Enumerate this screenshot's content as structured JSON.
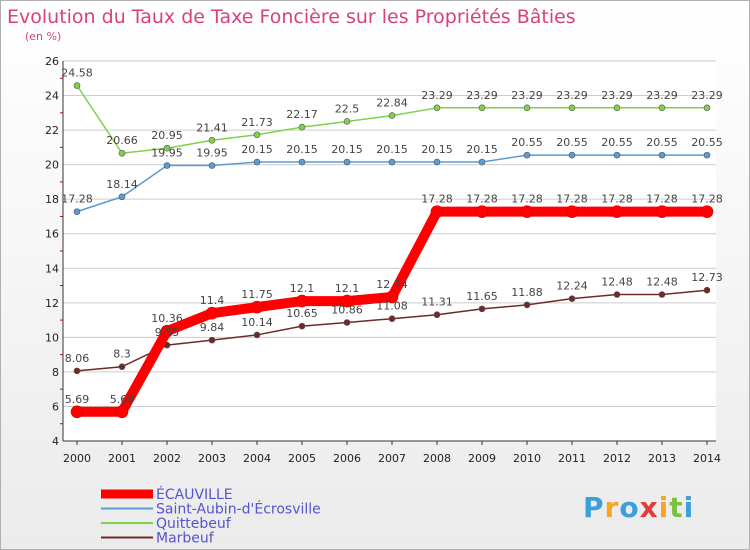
{
  "chart_data": {
    "type": "line",
    "title": "Evolution du Taux de Taxe Foncière sur les Propriétés Bâties",
    "subtitle": "(en %)",
    "x": [
      2000,
      2001,
      2002,
      2003,
      2004,
      2005,
      2006,
      2007,
      2008,
      2009,
      2010,
      2011,
      2012,
      2013,
      2014
    ],
    "ylim": [
      4,
      26
    ],
    "yticks": [
      4,
      6,
      8,
      10,
      12,
      14,
      16,
      18,
      20,
      22,
      24,
      26
    ],
    "grid": "horizontal",
    "legend": "bottom-left",
    "series": [
      {
        "name": "Quittebeuf",
        "color": "#7ed24a",
        "values": [
          24.58,
          20.66,
          20.95,
          21.41,
          21.73,
          22.17,
          22.5,
          22.84,
          23.29,
          23.29,
          23.29,
          23.29,
          23.29,
          23.29,
          23.29
        ],
        "labels": [
          "24.58",
          "20.66",
          "20.95",
          "21.41",
          "21.73",
          "22.17",
          "22.5",
          "22.84",
          "23.29",
          "23.29",
          "23.29",
          "23.29",
          "23.29",
          "23.29",
          "23.29"
        ]
      },
      {
        "name": "Saint-Aubin-d'Écrosville",
        "color": "#5b9bd5",
        "values": [
          17.28,
          18.14,
          19.95,
          19.95,
          20.15,
          20.15,
          20.15,
          20.15,
          20.15,
          20.15,
          20.55,
          20.55,
          20.55,
          20.55,
          20.55
        ],
        "labels": [
          "17.28",
          "18.14",
          "19.95",
          "19.95",
          "20.15",
          "20.15",
          "20.15",
          "20.15",
          "20.15",
          "20.15",
          "20.55",
          "20.55",
          "20.55",
          "20.55",
          "20.55"
        ]
      },
      {
        "name": "Marbeuf",
        "color": "#6e2a2a",
        "values": [
          8.06,
          8.3,
          9.55,
          9.84,
          10.14,
          10.65,
          10.86,
          11.08,
          11.31,
          11.65,
          11.88,
          12.24,
          12.48,
          12.48,
          12.73
        ],
        "labels": [
          "8.06",
          "8.3",
          "9.55",
          "9.84",
          "10.14",
          "10.65",
          "10.86",
          "11.08",
          "11.31",
          "11.65",
          "11.88",
          "12.24",
          "12.48",
          "12.48",
          "12.73"
        ]
      },
      {
        "name": "ÉCAUVILLE",
        "color": "#ff0000",
        "values": [
          5.69,
          5.69,
          10.36,
          11.4,
          11.75,
          12.1,
          12.1,
          12.34,
          17.28,
          17.28,
          17.28,
          17.28,
          17.28,
          17.28,
          17.28
        ],
        "labels": [
          "5.69",
          "5.69",
          "10.36",
          "11.4",
          "11.75",
          "12.1",
          "12.1",
          "12.34",
          "17.28",
          "17.28",
          "17.28",
          "17.28",
          "17.28",
          "17.28",
          "17.28"
        ]
      }
    ],
    "legend_order": [
      "ÉCAUVILLE",
      "Saint-Aubin-d'Écrosville",
      "Quittebeuf",
      "Marbeuf"
    ]
  },
  "logo": {
    "letters": [
      "P",
      "r",
      "o",
      "x",
      "i",
      "t",
      "i"
    ],
    "colors": [
      "#3aa0dc",
      "#f5a623",
      "#3aa0dc",
      "#e03c3c",
      "#f5a623",
      "#7ac143",
      "#3aa0dc"
    ]
  }
}
